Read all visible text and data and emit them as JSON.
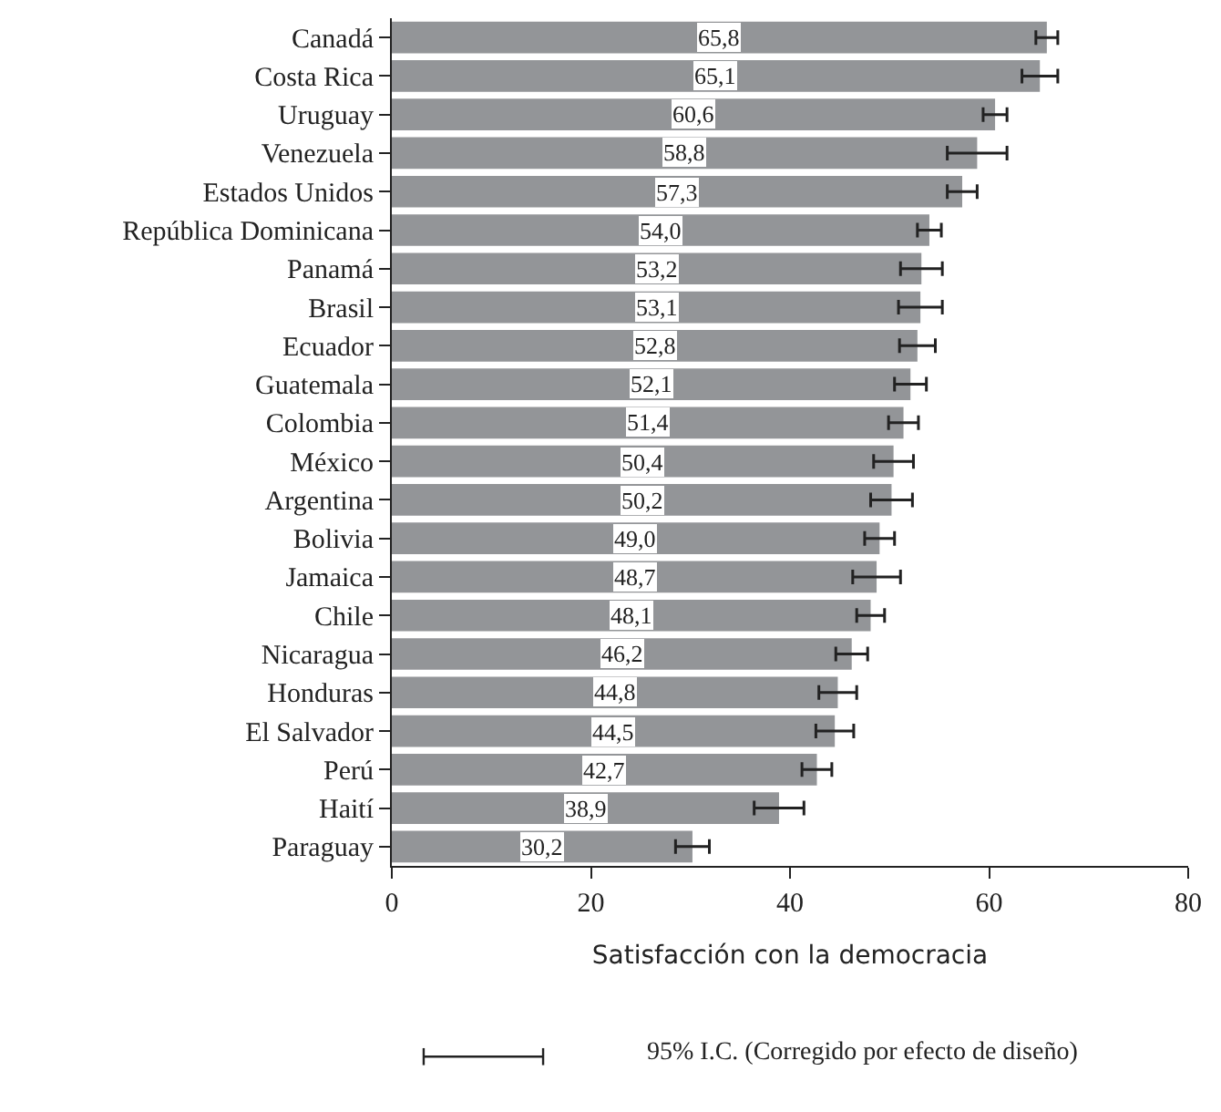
{
  "chart_data": {
    "type": "bar",
    "orientation": "horizontal",
    "xlabel": "Satisfacción con la democracia",
    "categories": [
      "Canadá",
      "Costa Rica",
      "Uruguay",
      "Venezuela",
      "Estados Unidos",
      "República Dominicana",
      "Panamá",
      "Brasil",
      "Ecuador",
      "Guatemala",
      "Colombia",
      "México",
      "Argentina",
      "Bolivia",
      "Jamaica",
      "Chile",
      "Nicaragua",
      "Honduras",
      "El Salvador",
      "Perú",
      "Haití",
      "Paraguay"
    ],
    "values": [
      65.8,
      65.1,
      60.6,
      58.8,
      57.3,
      54.0,
      53.2,
      53.1,
      52.8,
      52.1,
      51.4,
      50.4,
      50.2,
      49.0,
      48.7,
      48.1,
      46.2,
      44.8,
      44.5,
      42.7,
      38.9,
      30.2
    ],
    "value_labels": [
      "65,8",
      "65,1",
      "60,6",
      "58,8",
      "57,3",
      "54,0",
      "53,2",
      "53,1",
      "52,8",
      "52,1",
      "51,4",
      "50,4",
      "50,2",
      "49,0",
      "48,7",
      "48,1",
      "46,2",
      "44,8",
      "44,5",
      "42,7",
      "38,9",
      "30,2"
    ],
    "errors": [
      1.1,
      1.8,
      1.2,
      3.0,
      1.5,
      1.2,
      2.1,
      2.2,
      1.8,
      1.6,
      1.5,
      2.0,
      2.1,
      1.5,
      2.4,
      1.4,
      1.6,
      1.9,
      1.9,
      1.5,
      2.5,
      1.7
    ],
    "color": "#939598",
    "xlim": [
      0,
      80
    ],
    "xticks": [
      0,
      20,
      40,
      60,
      80
    ],
    "annotations": [
      "95% I.C. (Corregido por efecto de diseño)"
    ]
  }
}
